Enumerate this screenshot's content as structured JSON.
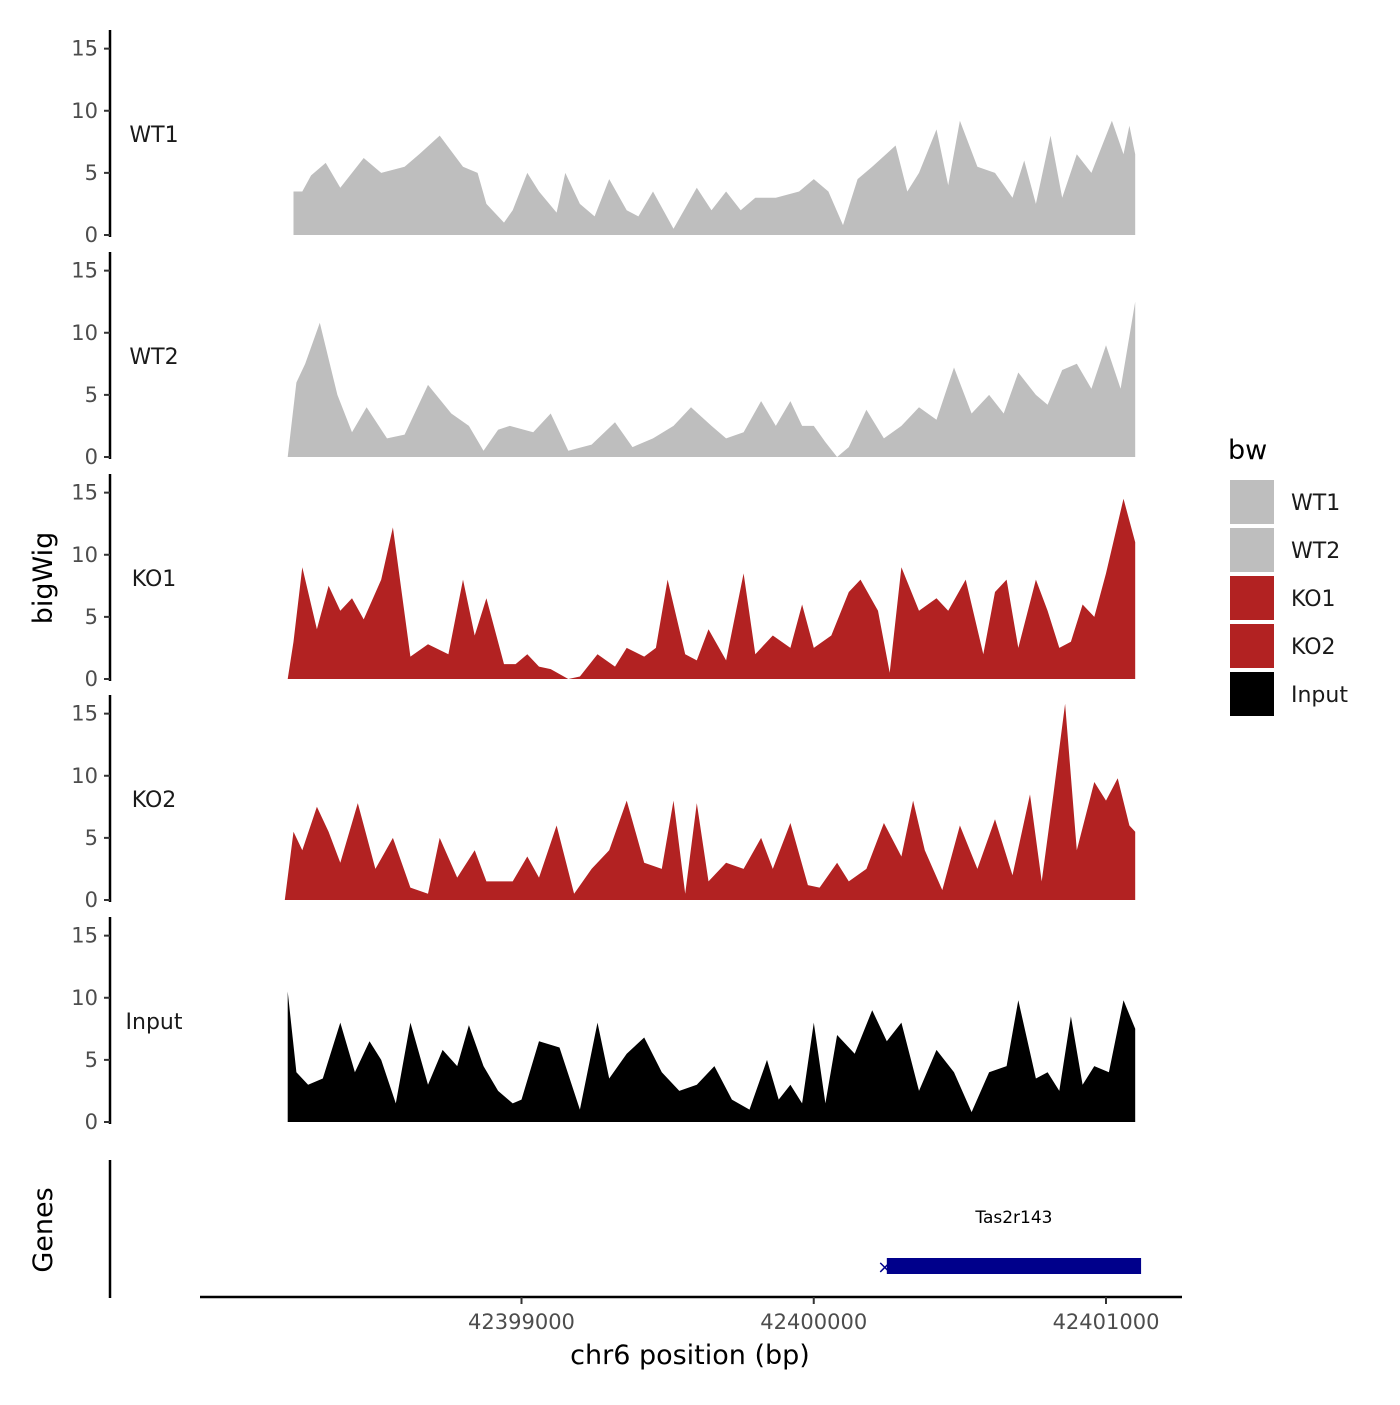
{
  "chart_data": {
    "type": "area",
    "xlabel": "chr6 position (bp)",
    "ylabel": "bigWig",
    "gene_track_label": "Genes",
    "xlim": [
      42397900,
      42401260
    ],
    "x_ticks": [
      42399000,
      42400000,
      42401000
    ],
    "x_tick_labels": [
      "42399000",
      "42400000",
      "42401000"
    ],
    "ylim": [
      0,
      16.5
    ],
    "y_ticks": [
      0,
      5,
      10,
      15
    ],
    "y_tick_labels": [
      "0",
      "5",
      "10",
      "15"
    ],
    "legend_title": "bw",
    "legend_position": "right",
    "grid": false,
    "series": [
      {
        "name": "WT1",
        "color": "#bebebe",
        "x": [
          42398220,
          42398250,
          42398280,
          42398330,
          42398380,
          42398460,
          42398520,
          42398600,
          42398650,
          42398720,
          42398800,
          42398850,
          42398880,
          42398940,
          42398970,
          42399020,
          42399060,
          42399120,
          42399150,
          42399200,
          42399250,
          42399300,
          42399360,
          42399400,
          42399450,
          42399520,
          42399600,
          42399650,
          42399700,
          42399750,
          42399800,
          42399870,
          42399950,
          42400000,
          42400050,
          42400100,
          42400150,
          42400200,
          42400280,
          42400320,
          42400360,
          42400420,
          42400460,
          42400500,
          42400560,
          42400620,
          42400680,
          42400720,
          42400760,
          42400810,
          42400850,
          42400900,
          42400950,
          42401020,
          42401060,
          42401080,
          42401100
        ],
        "values": [
          3.5,
          3.5,
          4.8,
          5.8,
          3.8,
          6.2,
          5.0,
          5.5,
          6.5,
          8.0,
          5.5,
          5.0,
          2.5,
          1.0,
          2.0,
          5.0,
          3.5,
          1.8,
          5.0,
          2.5,
          1.5,
          4.5,
          2.0,
          1.5,
          3.5,
          0.5,
          3.8,
          2.0,
          3.5,
          2.0,
          3.0,
          3.0,
          3.5,
          4.5,
          3.5,
          0.8,
          4.5,
          5.5,
          7.2,
          3.5,
          5.0,
          8.5,
          4.0,
          9.2,
          5.5,
          5.0,
          3.0,
          6.0,
          2.5,
          8.0,
          3.0,
          6.5,
          5.0,
          9.2,
          6.5,
          8.8,
          6.5
        ]
      },
      {
        "name": "WT2",
        "color": "#bebebe",
        "x": [
          42398200,
          42398230,
          42398260,
          42398310,
          42398370,
          42398420,
          42398470,
          42398540,
          42398600,
          42398680,
          42398760,
          42398820,
          42398870,
          42398920,
          42398960,
          42399040,
          42399100,
          42399160,
          42399240,
          42399320,
          42399380,
          42399450,
          42399520,
          42399580,
          42399650,
          42399700,
          42399760,
          42399820,
          42399870,
          42399920,
          42399960,
          42400000,
          42400040,
          42400080,
          42400120,
          42400180,
          42400240,
          42400300,
          42400360,
          42400420,
          42400480,
          42400540,
          42400600,
          42400650,
          42400700,
          42400760,
          42400800,
          42400850,
          42400900,
          42400950,
          42401000,
          42401050,
          42401100
        ],
        "values": [
          0,
          6.0,
          7.5,
          10.8,
          5.0,
          2.0,
          4.0,
          1.5,
          1.8,
          5.8,
          3.5,
          2.5,
          0.5,
          2.2,
          2.5,
          2.0,
          3.5,
          0.5,
          1.0,
          2.8,
          0.8,
          1.5,
          2.5,
          4.0,
          2.5,
          1.5,
          2.0,
          4.5,
          2.5,
          4.5,
          2.5,
          2.5,
          1.2,
          0.0,
          0.8,
          3.8,
          1.5,
          2.5,
          4.0,
          3.0,
          7.2,
          3.5,
          5.0,
          3.5,
          6.8,
          5.0,
          4.2,
          7.0,
          7.5,
          5.5,
          9.0,
          5.5,
          12.5
        ]
      },
      {
        "name": "KO1",
        "color": "#b22222",
        "x": [
          42398200,
          42398220,
          42398250,
          42398300,
          42398340,
          42398380,
          42398420,
          42398460,
          42398520,
          42398560,
          42398620,
          42398680,
          42398750,
          42398800,
          42398840,
          42398880,
          42398940,
          42398980,
          42399020,
          42399060,
          42399100,
          42399160,
          42399200,
          42399260,
          42399320,
          42399360,
          42399420,
          42399460,
          42399500,
          42399560,
          42399600,
          42399640,
          42399700,
          42399760,
          42399800,
          42399860,
          42399920,
          42399960,
          42400000,
          42400060,
          42400120,
          42400160,
          42400220,
          42400260,
          42400300,
          42400360,
          42400420,
          42400460,
          42400520,
          42400580,
          42400620,
          42400660,
          42400700,
          42400760,
          42400800,
          42400840,
          42400880,
          42400920,
          42400960,
          42401000,
          42401060,
          42401100
        ],
        "values": [
          0,
          3.0,
          9.0,
          4.0,
          7.5,
          5.5,
          6.5,
          4.8,
          8.0,
          12.2,
          1.8,
          2.8,
          2.0,
          8.0,
          3.5,
          6.5,
          1.2,
          1.2,
          2.0,
          1.0,
          0.8,
          0.0,
          0.2,
          2.0,
          1.0,
          2.5,
          1.8,
          2.5,
          8.0,
          2.0,
          1.5,
          4.0,
          1.5,
          8.5,
          2.0,
          3.5,
          2.5,
          6.0,
          2.5,
          3.5,
          7.0,
          8.0,
          5.5,
          0.5,
          9.0,
          5.5,
          6.5,
          5.5,
          8.0,
          2.0,
          7.0,
          8.0,
          2.5,
          8.0,
          5.5,
          2.5,
          3.0,
          6.0,
          5.0,
          8.5,
          14.5,
          11.0
        ]
      },
      {
        "name": "KO2",
        "color": "#b22222",
        "x": [
          42398190,
          42398220,
          42398250,
          42398300,
          42398340,
          42398380,
          42398440,
          42398500,
          42398560,
          42398620,
          42398680,
          42398720,
          42398780,
          42398840,
          42398880,
          42398920,
          42398970,
          42399020,
          42399060,
          42399120,
          42399180,
          42399240,
          42399300,
          42399360,
          42399420,
          42399480,
          42399520,
          42399560,
          42399600,
          42399640,
          42399700,
          42399760,
          42399820,
          42399860,
          42399920,
          42399980,
          42400020,
          42400080,
          42400120,
          42400180,
          42400240,
          42400300,
          42400340,
          42400380,
          42400440,
          42400500,
          42400560,
          42400620,
          42400680,
          42400740,
          42400780,
          42400820,
          42400860,
          42400900,
          42400960,
          42401000,
          42401040,
          42401080,
          42401100
        ],
        "values": [
          0,
          5.5,
          4.0,
          7.5,
          5.5,
          3.0,
          7.8,
          2.5,
          5.0,
          1.0,
          0.5,
          5.0,
          1.8,
          4.0,
          1.5,
          1.5,
          1.5,
          3.5,
          1.8,
          6.0,
          0.5,
          2.5,
          4.0,
          8.0,
          3.0,
          2.5,
          8.0,
          0.5,
          7.8,
          1.5,
          3.0,
          2.5,
          5.0,
          2.5,
          6.2,
          1.2,
          1.0,
          3.0,
          1.5,
          2.5,
          6.2,
          3.5,
          8.0,
          4.0,
          0.8,
          6.0,
          2.5,
          6.5,
          2.0,
          8.5,
          1.5,
          8.5,
          15.8,
          4.0,
          9.5,
          8.0,
          9.8,
          6.0,
          5.5
        ]
      },
      {
        "name": "Input",
        "color": "#000000",
        "x": [
          42398200,
          42398230,
          42398270,
          42398320,
          42398380,
          42398430,
          42398480,
          42398520,
          42398570,
          42398620,
          42398680,
          42398730,
          42398780,
          42398820,
          42398870,
          42398920,
          42398970,
          42399000,
          42399060,
          42399130,
          42399200,
          42399260,
          42399300,
          42399360,
          42399420,
          42399480,
          42399540,
          42399600,
          42399660,
          42399720,
          42399780,
          42399840,
          42399880,
          42399920,
          42399960,
          42400000,
          42400040,
          42400080,
          42400140,
          42400200,
          42400250,
          42400300,
          42400360,
          42400420,
          42400480,
          42400540,
          42400600,
          42400660,
          42400700,
          42400760,
          42400800,
          42400840,
          42400880,
          42400920,
          42400960,
          42401010,
          42401060,
          42401100
        ],
        "values": [
          10.5,
          4.0,
          3.0,
          3.5,
          8.0,
          4.0,
          6.5,
          5.0,
          1.5,
          8.0,
          3.0,
          5.8,
          4.5,
          7.8,
          4.5,
          2.5,
          1.5,
          1.8,
          6.5,
          6.0,
          1.0,
          8.0,
          3.5,
          5.5,
          6.8,
          4.0,
          2.5,
          3.0,
          4.5,
          1.8,
          1.0,
          5.0,
          1.8,
          3.0,
          1.5,
          8.0,
          1.5,
          7.0,
          5.5,
          9.0,
          6.5,
          8.0,
          2.5,
          5.8,
          4.0,
          0.8,
          4.0,
          4.5,
          9.8,
          3.5,
          4.0,
          2.5,
          8.5,
          3.0,
          4.5,
          4.0,
          9.8,
          7.5
        ]
      }
    ],
    "genes": [
      {
        "name": "Tas2r143",
        "start": 42400250,
        "end": 42401120,
        "strand": "-",
        "color": "#00008b"
      }
    ]
  }
}
